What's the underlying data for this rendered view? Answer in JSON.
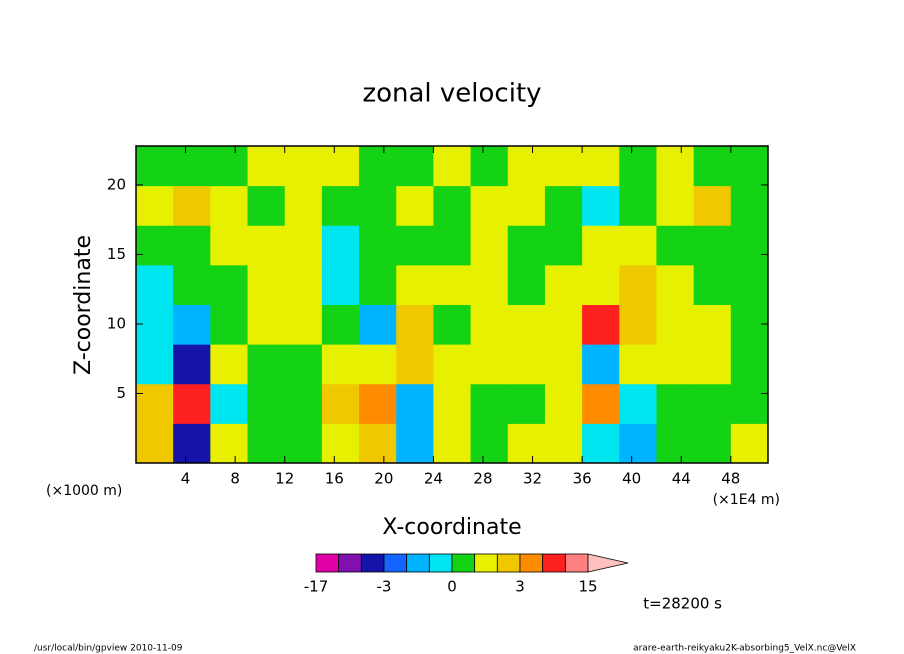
{
  "chart_data": {
    "type": "contour",
    "title": "zonal velocity",
    "x_label": "X-coordinate",
    "y_label": "Z-coordinate",
    "x_unit": "(×1E4 m)",
    "y_unit": "(×1000 m)",
    "time_label": "t=28200 s",
    "footer_left": "/usr/local/bin/gpview  2010-11-09",
    "footer_right": "arare-earth-reikyaku2K-absorbing5_VelX.nc@VelX",
    "xlim": [
      0,
      51
    ],
    "ylim": [
      0,
      22.8
    ],
    "xticks": [
      4,
      8,
      12,
      16,
      20,
      24,
      28,
      32,
      36,
      40,
      44,
      48
    ],
    "yticks": [
      5,
      10,
      15,
      20
    ],
    "x": [
      1.5,
      4.5,
      7.5,
      10.5,
      13.5,
      16.5,
      19.5,
      22.5,
      25.5,
      28.5,
      31.5,
      34.5,
      37.5,
      40.5,
      43.5,
      46.5,
      49.5
    ],
    "y": [
      1.425,
      4.275,
      7.125,
      9.975,
      12.825,
      15.675,
      18.525,
      21.375
    ],
    "values": [
      [
        2.5,
        -5,
        1.5,
        0.5,
        0.5,
        1.5,
        2.5,
        -2,
        1.5,
        0.5,
        1.5,
        1.5,
        -0.5,
        -2,
        0.5,
        0.5,
        1.5
      ],
      [
        2.5,
        7,
        -0.5,
        0.5,
        0.5,
        2.5,
        4,
        -2,
        1.5,
        0.5,
        0.5,
        1.5,
        4,
        -0.5,
        0.5,
        0.5,
        0.5
      ],
      [
        -0.5,
        -4,
        1.5,
        0.5,
        0.5,
        1.5,
        1.5,
        2.5,
        1.5,
        1.5,
        1.5,
        1.5,
        -2,
        1.5,
        1.5,
        1.5,
        0.5
      ],
      [
        -0.5,
        -2,
        0.5,
        1.5,
        1.5,
        0.5,
        -2,
        2.5,
        0.5,
        1.5,
        1.5,
        1.5,
        7,
        2.5,
        1.5,
        1.5,
        0.5
      ],
      [
        -0.5,
        0.5,
        0.5,
        1.5,
        1.5,
        -0.5,
        0.5,
        1.5,
        1.5,
        1.5,
        0.5,
        1.5,
        1.5,
        2.5,
        1.5,
        0.5,
        0.5
      ],
      [
        0.5,
        0.5,
        1.5,
        1.5,
        1.5,
        -0.5,
        0.5,
        0.5,
        0.5,
        1.5,
        0.5,
        0.5,
        1.5,
        1.5,
        0.5,
        0.5,
        0.5
      ],
      [
        1.5,
        2.5,
        1.5,
        0.5,
        1.5,
        0.5,
        0.5,
        1.5,
        0.5,
        1.5,
        1.5,
        0.5,
        -0.5,
        0.5,
        1.5,
        2.5,
        0.5
      ],
      [
        0.5,
        0.5,
        0.5,
        1.5,
        1.5,
        1.5,
        0.5,
        0.5,
        1.5,
        0.5,
        1.5,
        1.5,
        1.5,
        0.5,
        1.5,
        0.5,
        0.5
      ]
    ],
    "levels": [
      -17,
      -10,
      -6,
      -3,
      -2,
      -1,
      0,
      1,
      2,
      3,
      6,
      10,
      15
    ],
    "colors": [
      "#e000a8",
      "#8010b0",
      "#1414a8",
      "#1464ff",
      "#00b4ff",
      "#00e6f0",
      "#14d214",
      "#e6f000",
      "#f0c800",
      "#ff8c00",
      "#ff2020",
      "#ff8080",
      "#ffc0c0"
    ],
    "colorbar_labels": [
      -17,
      -3,
      0,
      3,
      15
    ]
  }
}
